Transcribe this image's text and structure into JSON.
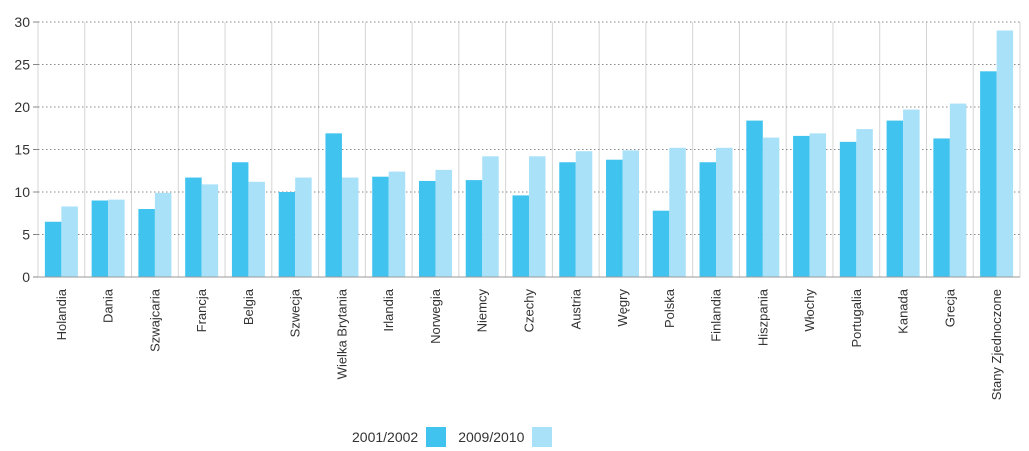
{
  "chart_data": {
    "type": "bar",
    "categories": [
      "Holandia",
      "Dania",
      "Szwajcaria",
      "Francja",
      "Belgia",
      "Szwecja",
      "Wielka Brytania",
      "Irlandia",
      "Norwegia",
      "Niemcy",
      "Czechy",
      "Austria",
      "Węgry",
      "Polska",
      "Finlandia",
      "Hiszpania",
      "Włochy",
      "Portugalia",
      "Kanada",
      "Grecja",
      "Stany Zjednoczone"
    ],
    "series": [
      {
        "name": "2001/2002",
        "color": "#40c4ef",
        "values": [
          6.5,
          9.0,
          8.0,
          11.7,
          13.5,
          10.0,
          16.9,
          11.8,
          11.3,
          11.4,
          9.6,
          13.5,
          13.8,
          7.8,
          13.5,
          18.4,
          16.6,
          15.9,
          18.4,
          16.3,
          24.2
        ]
      },
      {
        "name": "2009/2010",
        "color": "#a9e1f9",
        "values": [
          8.3,
          9.1,
          9.9,
          10.9,
          11.2,
          11.7,
          11.7,
          12.4,
          12.6,
          14.2,
          14.2,
          14.8,
          14.9,
          15.2,
          15.2,
          16.4,
          16.9,
          17.4,
          19.7,
          20.4,
          29.0
        ]
      }
    ],
    "y_ticks": [
      "0",
      "5",
      "10",
      "15",
      "20",
      "25",
      "30"
    ],
    "ylim": [
      0,
      30
    ],
    "grid": true,
    "legend_position": "bottom"
  }
}
